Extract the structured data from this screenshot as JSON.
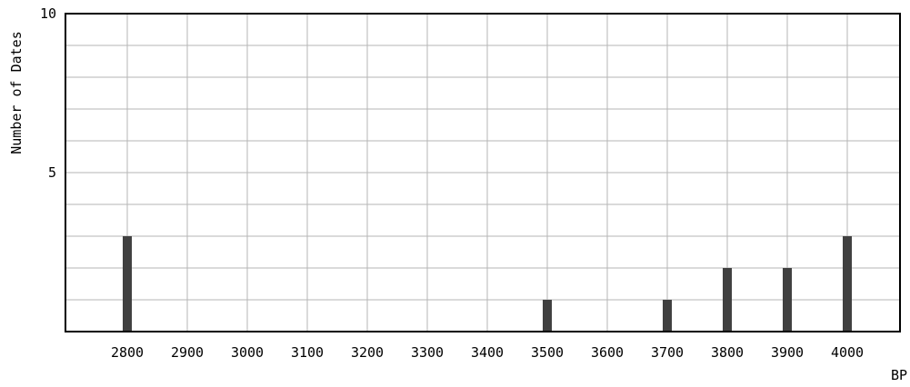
{
  "chart_data": {
    "type": "bar",
    "title": "",
    "xlabel": "BP",
    "ylabel": "Number of Dates",
    "categories": [
      "2800",
      "2900",
      "3000",
      "3100",
      "3200",
      "3300",
      "3400",
      "3500",
      "3600",
      "3700",
      "3800",
      "3900",
      "4000"
    ],
    "values": [
      3,
      0,
      0,
      0,
      0,
      0,
      0,
      1,
      0,
      1,
      2,
      2,
      3
    ],
    "ylim": [
      0,
      10
    ],
    "y_ticks": [
      "5",
      "10"
    ],
    "grid": true,
    "legend": "none",
    "colors": {
      "bar": "#404040",
      "grid": "#b5b5b5",
      "axis": "#000000"
    }
  }
}
